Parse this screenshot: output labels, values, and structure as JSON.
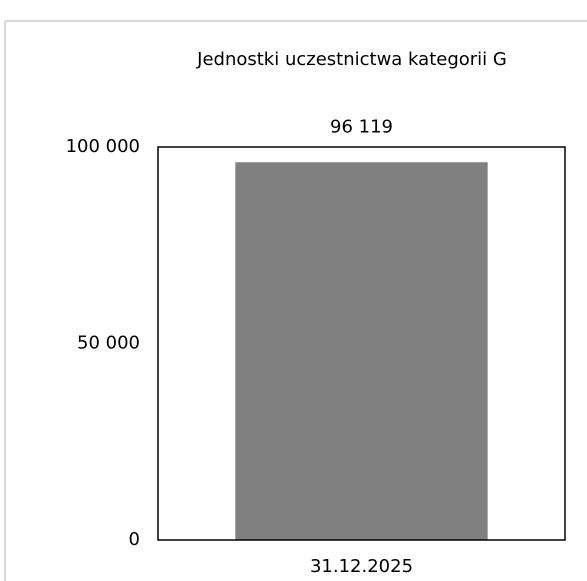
{
  "chart_data": {
    "type": "bar",
    "title": "Jednostki uczestnictwa kategorii G",
    "categories": [
      "31.12.2025"
    ],
    "values": [
      96119
    ],
    "value_labels": [
      "96 119"
    ],
    "color": "#808080",
    "ylim": [
      0,
      100000
    ],
    "yticks": [
      0,
      {
        "value": 50000,
        "label": "50 000"
      },
      {
        "value": 100000,
        "label": "100 000"
      }
    ],
    "grid": false
  }
}
